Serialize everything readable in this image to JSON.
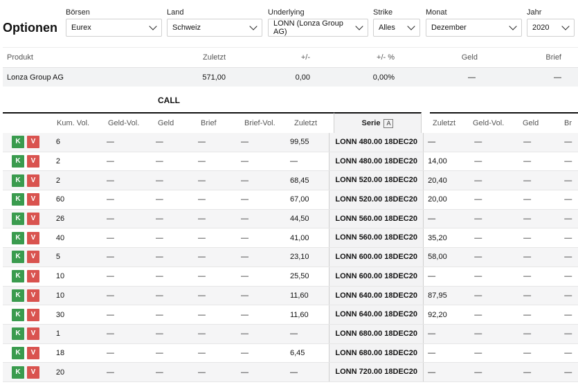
{
  "page": {
    "title": "Optionen"
  },
  "filters": [
    {
      "label": "Börsen",
      "value": "Eurex"
    },
    {
      "label": "Land",
      "value": "Schweiz"
    },
    {
      "label": "Underlying",
      "value": "LONN (Lonza Group AG)"
    },
    {
      "label": "Strike",
      "value": "Alles"
    },
    {
      "label": "Monat",
      "value": "Dezember"
    },
    {
      "label": "Jahr",
      "value": "2020"
    }
  ],
  "product_table": {
    "headers": [
      "Produkt",
      "Zuletzt",
      "+/-",
      "+/- %",
      "Geld",
      "Brief"
    ],
    "row": [
      "Lonza Group AG",
      "571,00",
      "0,00",
      "0,00%",
      "—",
      "—"
    ]
  },
  "call_label": "CALL",
  "option_table": {
    "call_headers": [
      "Kum. Vol.",
      "Geld-Vol.",
      "Geld",
      "Brief",
      "Brief-Vol.",
      "Zuletzt"
    ],
    "serie_header": "Serie",
    "serie_badge": "A",
    "put_headers": [
      "Zuletzt",
      "Geld-Vol.",
      "Geld",
      "Br"
    ],
    "buy_label": "K",
    "sell_label": "V",
    "dash": "—",
    "rows": [
      {
        "vol": "6",
        "call_last": "99,55",
        "serie": "LONN 480.00 18DEC20",
        "put_last": "—"
      },
      {
        "vol": "2",
        "call_last": "—",
        "serie": "LONN 480.00 18DEC20",
        "put_last": "14,00"
      },
      {
        "vol": "2",
        "call_last": "68,45",
        "serie": "LONN 520.00 18DEC20",
        "put_last": "20,40"
      },
      {
        "vol": "60",
        "call_last": "67,00",
        "serie": "LONN 520.00 18DEC20",
        "put_last": "20,00"
      },
      {
        "vol": "26",
        "call_last": "44,50",
        "serie": "LONN 560.00 18DEC20",
        "put_last": "—"
      },
      {
        "vol": "40",
        "call_last": "41,00",
        "serie": "LONN 560.00 18DEC20",
        "put_last": "35,20"
      },
      {
        "vol": "5",
        "call_last": "23,10",
        "serie": "LONN 600.00 18DEC20",
        "put_last": "58,00"
      },
      {
        "vol": "10",
        "call_last": "25,50",
        "serie": "LONN 600.00 18DEC20",
        "put_last": "—"
      },
      {
        "vol": "10",
        "call_last": "11,60",
        "serie": "LONN 640.00 18DEC20",
        "put_last": "87,95"
      },
      {
        "vol": "30",
        "call_last": "11,60",
        "serie": "LONN 640.00 18DEC20",
        "put_last": "92,20"
      },
      {
        "vol": "1",
        "call_last": "—",
        "serie": "LONN 680.00 18DEC20",
        "put_last": "—"
      },
      {
        "vol": "18",
        "call_last": "6,45",
        "serie": "LONN 680.00 18DEC20",
        "put_last": "—"
      },
      {
        "vol": "20",
        "call_last": "—",
        "serie": "LONN 720.00 18DEC20",
        "put_last": "—"
      }
    ]
  }
}
